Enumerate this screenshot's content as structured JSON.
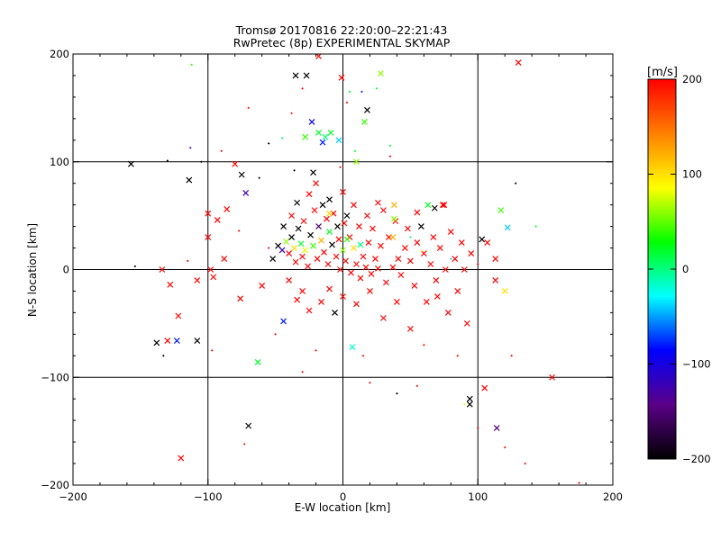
{
  "chart_data": {
    "type": "scatter",
    "title": "Tromsø 20170816 22:20:00–22:21:43",
    "subtitle": "RwPretec (8p) EXPERIMENTAL SKYMAP",
    "xlabel": "E-W location [km]",
    "ylabel": "N-S location [km]",
    "xlim": [
      -200,
      200
    ],
    "ylim": [
      -200,
      200
    ],
    "grid": true,
    "x_ticks": [
      "−200",
      "−100",
      "0",
      "100",
      "200"
    ],
    "y_ticks": [
      "−200",
      "−100",
      "0",
      "100",
      "200"
    ],
    "colorbar": {
      "label": "[m/s]",
      "range": [
        -200,
        200
      ],
      "ticks": [
        "200",
        "100",
        "0",
        "−100",
        "−200"
      ],
      "colors": [
        "#ff0000",
        "#ff7f00",
        "#ffff00",
        "#00ff00",
        "#00ffff",
        "#0000ff",
        "#5a0087",
        "#000000"
      ]
    },
    "points": [
      {
        "x": -157,
        "y": 98,
        "v": -200,
        "m": "x"
      },
      {
        "x": -130,
        "y": 101,
        "v": -200,
        "m": "d"
      },
      {
        "x": -113,
        "y": 113,
        "v": -120,
        "m": "d"
      },
      {
        "x": -114,
        "y": 83,
        "v": -200,
        "m": "x"
      },
      {
        "x": -112,
        "y": 190,
        "v": 40,
        "m": "d"
      },
      {
        "x": -105,
        "y": 100,
        "v": -200,
        "m": "d"
      },
      {
        "x": -90,
        "y": 110,
        "v": 200,
        "m": "d"
      },
      {
        "x": -80,
        "y": 98,
        "v": 200,
        "m": "x"
      },
      {
        "x": -75,
        "y": 88,
        "v": -200,
        "m": "x"
      },
      {
        "x": -72,
        "y": 71,
        "v": -120,
        "m": "x"
      },
      {
        "x": -55,
        "y": 117,
        "v": -200,
        "m": "d"
      },
      {
        "x": -45,
        "y": 122,
        "v": 10,
        "m": "d"
      },
      {
        "x": -38,
        "y": 145,
        "v": 200,
        "m": "d"
      },
      {
        "x": -35,
        "y": 180,
        "v": -200,
        "m": "x"
      },
      {
        "x": -30,
        "y": 168,
        "v": 200,
        "m": "d"
      },
      {
        "x": -27,
        "y": 180,
        "v": -200,
        "m": "x"
      },
      {
        "x": -23,
        "y": 137,
        "v": -90,
        "m": "x"
      },
      {
        "x": -18,
        "y": 127,
        "v": 20,
        "m": "x"
      },
      {
        "x": -15,
        "y": 118,
        "v": -80,
        "m": "x"
      },
      {
        "x": -13,
        "y": 123,
        "v": 0,
        "m": "x"
      },
      {
        "x": -9,
        "y": 127,
        "v": 20,
        "m": "x"
      },
      {
        "x": -3,
        "y": 120,
        "v": -40,
        "m": "x"
      },
      {
        "x": -1,
        "y": 178,
        "v": 200,
        "m": "x"
      },
      {
        "x": 3,
        "y": 155,
        "v": 200,
        "m": "d"
      },
      {
        "x": 9,
        "y": 110,
        "v": 20,
        "m": "d"
      },
      {
        "x": 16,
        "y": 137,
        "v": 40,
        "m": "x"
      },
      {
        "x": 18,
        "y": 148,
        "v": -200,
        "m": "x"
      },
      {
        "x": 25,
        "y": 168,
        "v": 20,
        "m": "d"
      },
      {
        "x": 28,
        "y": 182,
        "v": 60,
        "m": "x"
      },
      {
        "x": -28,
        "y": 123,
        "v": 40,
        "m": "x"
      },
      {
        "x": -36,
        "y": 92,
        "v": -200,
        "m": "d"
      },
      {
        "x": -22,
        "y": 90,
        "v": -200,
        "m": "x"
      },
      {
        "x": -2,
        "y": 95,
        "v": 200,
        "m": "d"
      },
      {
        "x": 10,
        "y": 100,
        "v": 60,
        "m": "x"
      },
      {
        "x": 35,
        "y": 115,
        "v": 20,
        "m": "d"
      },
      {
        "x": 35,
        "y": 105,
        "v": 200,
        "m": "d"
      },
      {
        "x": -134,
        "y": 0,
        "v": 200,
        "m": "x"
      },
      {
        "x": -128,
        "y": -14,
        "v": 200,
        "m": "x"
      },
      {
        "x": -122,
        "y": -43,
        "v": 200,
        "m": "x"
      },
      {
        "x": -108,
        "y": -10,
        "v": 200,
        "m": "x"
      },
      {
        "x": -98,
        "y": 0,
        "v": 200,
        "m": "x"
      },
      {
        "x": -96,
        "y": -7,
        "v": 200,
        "m": "x"
      },
      {
        "x": -100,
        "y": 30,
        "v": 200,
        "m": "x"
      },
      {
        "x": -100,
        "y": 52,
        "v": 200,
        "m": "x"
      },
      {
        "x": -88,
        "y": 10,
        "v": 200,
        "m": "x"
      },
      {
        "x": -93,
        "y": 46,
        "v": 200,
        "m": "x"
      },
      {
        "x": -86,
        "y": 56,
        "v": 200,
        "m": "x"
      },
      {
        "x": -77,
        "y": 36,
        "v": 200,
        "m": "d"
      },
      {
        "x": -138,
        "y": -68,
        "v": -200,
        "m": "x"
      },
      {
        "x": -130,
        "y": -66,
        "v": 200,
        "m": "x"
      },
      {
        "x": -123,
        "y": -66,
        "v": -80,
        "m": "x"
      },
      {
        "x": -108,
        "y": -66,
        "v": -200,
        "m": "x"
      },
      {
        "x": -133,
        "y": -80,
        "v": -200,
        "m": "d"
      },
      {
        "x": -97,
        "y": -75,
        "v": 200,
        "m": "d"
      },
      {
        "x": -63,
        "y": -86,
        "v": 20,
        "m": "x"
      },
      {
        "x": -76,
        "y": -27,
        "v": 200,
        "m": "x"
      },
      {
        "x": -60,
        "y": -15,
        "v": 200,
        "m": "x"
      },
      {
        "x": -120,
        "y": -175,
        "v": 200,
        "m": "x"
      },
      {
        "x": -70,
        "y": -145,
        "v": -200,
        "m": "x"
      },
      {
        "x": -73,
        "y": -162,
        "v": 200,
        "m": "d"
      },
      {
        "x": -52,
        "y": 10,
        "v": -200,
        "m": "x"
      },
      {
        "x": -48,
        "y": 22,
        "v": -200,
        "m": "x"
      },
      {
        "x": -45,
        "y": 18,
        "v": -120,
        "m": "x"
      },
      {
        "x": -42,
        "y": 26,
        "v": 60,
        "m": "x"
      },
      {
        "x": -40,
        "y": 15,
        "v": 200,
        "m": "x"
      },
      {
        "x": -38,
        "y": 30,
        "v": -200,
        "m": "x"
      },
      {
        "x": -36,
        "y": 20,
        "v": 100,
        "m": "x"
      },
      {
        "x": -35,
        "y": 7,
        "v": 200,
        "m": "x"
      },
      {
        "x": -33,
        "y": 38,
        "v": -200,
        "m": "x"
      },
      {
        "x": -31,
        "y": 24,
        "v": 20,
        "m": "x"
      },
      {
        "x": -30,
        "y": 12,
        "v": 200,
        "m": "x"
      },
      {
        "x": -29,
        "y": 45,
        "v": 200,
        "m": "x"
      },
      {
        "x": -28,
        "y": 18,
        "v": 80,
        "m": "x"
      },
      {
        "x": -26,
        "y": 3,
        "v": 200,
        "m": "x"
      },
      {
        "x": -24,
        "y": 32,
        "v": -200,
        "m": "x"
      },
      {
        "x": -22,
        "y": 22,
        "v": 40,
        "m": "x"
      },
      {
        "x": -21,
        "y": 55,
        "v": 200,
        "m": "x"
      },
      {
        "x": -19,
        "y": 10,
        "v": 200,
        "m": "x"
      },
      {
        "x": -18,
        "y": 40,
        "v": -150,
        "m": "x"
      },
      {
        "x": -16,
        "y": 27,
        "v": 120,
        "m": "x"
      },
      {
        "x": -15,
        "y": 60,
        "v": -200,
        "m": "x"
      },
      {
        "x": -14,
        "y": 16,
        "v": 200,
        "m": "x"
      },
      {
        "x": -12,
        "y": 47,
        "v": 200,
        "m": "x"
      },
      {
        "x": -11,
        "y": 5,
        "v": 200,
        "m": "x"
      },
      {
        "x": -10,
        "y": 35,
        "v": 20,
        "m": "x"
      },
      {
        "x": -8,
        "y": 23,
        "v": -200,
        "m": "x"
      },
      {
        "x": -7,
        "y": 52,
        "v": 200,
        "m": "x"
      },
      {
        "x": -5,
        "y": 12,
        "v": 200,
        "m": "x"
      },
      {
        "x": -4,
        "y": 40,
        "v": -200,
        "m": "x"
      },
      {
        "x": -3,
        "y": 28,
        "v": 200,
        "m": "x"
      },
      {
        "x": -2,
        "y": 0,
        "v": 200,
        "m": "x"
      },
      {
        "x": 0,
        "y": 18,
        "v": 60,
        "m": "x"
      },
      {
        "x": 1,
        "y": 43,
        "v": 200,
        "m": "x"
      },
      {
        "x": 2,
        "y": 8,
        "v": 200,
        "m": "x"
      },
      {
        "x": 3,
        "y": 50,
        "v": -200,
        "m": "x"
      },
      {
        "x": 5,
        "y": 30,
        "v": 200,
        "m": "x"
      },
      {
        "x": 6,
        "y": -3,
        "v": 200,
        "m": "x"
      },
      {
        "x": 8,
        "y": 20,
        "v": 100,
        "m": "x"
      },
      {
        "x": 10,
        "y": 5,
        "v": 200,
        "m": "x"
      },
      {
        "x": 12,
        "y": 40,
        "v": 200,
        "m": "x"
      },
      {
        "x": 13,
        "y": -8,
        "v": 200,
        "m": "x"
      },
      {
        "x": 15,
        "y": 12,
        "v": 200,
        "m": "x"
      },
      {
        "x": 17,
        "y": 2,
        "v": 200,
        "m": "x"
      },
      {
        "x": 19,
        "y": 25,
        "v": 200,
        "m": "x"
      },
      {
        "x": 21,
        "y": -4,
        "v": 200,
        "m": "x"
      },
      {
        "x": 22,
        "y": 38,
        "v": 200,
        "m": "x"
      },
      {
        "x": 24,
        "y": 10,
        "v": 200,
        "m": "x"
      },
      {
        "x": 26,
        "y": 1,
        "v": 200,
        "m": "x"
      },
      {
        "x": 28,
        "y": 22,
        "v": 200,
        "m": "x"
      },
      {
        "x": 30,
        "y": 55,
        "v": 200,
        "m": "x"
      },
      {
        "x": 32,
        "y": -12,
        "v": 200,
        "m": "x"
      },
      {
        "x": 34,
        "y": 30,
        "v": 200,
        "m": "x"
      },
      {
        "x": 37,
        "y": 2,
        "v": 200,
        "m": "x"
      },
      {
        "x": 39,
        "y": 45,
        "v": 200,
        "m": "x"
      },
      {
        "x": 41,
        "y": 10,
        "v": 200,
        "m": "x"
      },
      {
        "x": 43,
        "y": -5,
        "v": 200,
        "m": "x"
      },
      {
        "x": 46,
        "y": 20,
        "v": 200,
        "m": "x"
      },
      {
        "x": 48,
        "y": 38,
        "v": 200,
        "m": "x"
      },
      {
        "x": 50,
        "y": 8,
        "v": 200,
        "m": "x"
      },
      {
        "x": 53,
        "y": -15,
        "v": 200,
        "m": "x"
      },
      {
        "x": 55,
        "y": 25,
        "v": 200,
        "m": "x"
      },
      {
        "x": 58,
        "y": 40,
        "v": -200,
        "m": "x"
      },
      {
        "x": 60,
        "y": 15,
        "v": 200,
        "m": "x"
      },
      {
        "x": 62,
        "y": -30,
        "v": 200,
        "m": "x"
      },
      {
        "x": 65,
        "y": 5,
        "v": 200,
        "m": "x"
      },
      {
        "x": 67,
        "y": 30,
        "v": 200,
        "m": "x"
      },
      {
        "x": 69,
        "y": -10,
        "v": 200,
        "m": "x"
      },
      {
        "x": 72,
        "y": 20,
        "v": 200,
        "m": "x"
      },
      {
        "x": 74,
        "y": 60,
        "v": 200,
        "m": "x"
      },
      {
        "x": 76,
        "y": 0,
        "v": 200,
        "m": "x"
      },
      {
        "x": 78,
        "y": -40,
        "v": 200,
        "m": "x"
      },
      {
        "x": 80,
        "y": 35,
        "v": 200,
        "m": "x"
      },
      {
        "x": 83,
        "y": 10,
        "v": 200,
        "m": "x"
      },
      {
        "x": 85,
        "y": -20,
        "v": 200,
        "m": "x"
      },
      {
        "x": 88,
        "y": 25,
        "v": 200,
        "m": "x"
      },
      {
        "x": 90,
        "y": 0,
        "v": 200,
        "m": "x"
      },
      {
        "x": 92,
        "y": -50,
        "v": 200,
        "m": "x"
      },
      {
        "x": 95,
        "y": 15,
        "v": 200,
        "m": "x"
      },
      {
        "x": -6,
        "y": -40,
        "v": -200,
        "m": "x"
      },
      {
        "x": -16,
        "y": -30,
        "v": 200,
        "m": "x"
      },
      {
        "x": -25,
        "y": -38,
        "v": 200,
        "m": "x"
      },
      {
        "x": -34,
        "y": -28,
        "v": 200,
        "m": "x"
      },
      {
        "x": -44,
        "y": -48,
        "v": -80,
        "m": "x"
      },
      {
        "x": 7,
        "y": -72,
        "v": -20,
        "m": "x"
      },
      {
        "x": -30,
        "y": -20,
        "v": 200,
        "m": "x"
      },
      {
        "x": -40,
        "y": -10,
        "v": 200,
        "m": "x"
      },
      {
        "x": -10,
        "y": -18,
        "v": 200,
        "m": "x"
      },
      {
        "x": 0,
        "y": -25,
        "v": 200,
        "m": "x"
      },
      {
        "x": 10,
        "y": -32,
        "v": 200,
        "m": "x"
      },
      {
        "x": 20,
        "y": -20,
        "v": 200,
        "m": "x"
      },
      {
        "x": 30,
        "y": -45,
        "v": 200,
        "m": "x"
      },
      {
        "x": 40,
        "y": -30,
        "v": 200,
        "m": "x"
      },
      {
        "x": 50,
        "y": -55,
        "v": 200,
        "m": "x"
      },
      {
        "x": 70,
        "y": -25,
        "v": 200,
        "m": "x"
      },
      {
        "x": -44,
        "y": 40,
        "v": -200,
        "m": "x"
      },
      {
        "x": -38,
        "y": 50,
        "v": 200,
        "m": "x"
      },
      {
        "x": -34,
        "y": 62,
        "v": -200,
        "m": "x"
      },
      {
        "x": -25,
        "y": 70,
        "v": 200,
        "m": "x"
      },
      {
        "x": -20,
        "y": 80,
        "v": 200,
        "m": "x"
      },
      {
        "x": -10,
        "y": 65,
        "v": -200,
        "m": "x"
      },
      {
        "x": 0,
        "y": 72,
        "v": 200,
        "m": "x"
      },
      {
        "x": 8,
        "y": 60,
        "v": 200,
        "m": "x"
      },
      {
        "x": 18,
        "y": 50,
        "v": 200,
        "m": "x"
      },
      {
        "x": 26,
        "y": 62,
        "v": 200,
        "m": "x"
      },
      {
        "x": 38,
        "y": 60,
        "v": 120,
        "m": "x"
      },
      {
        "x": 63,
        "y": 60,
        "v": 20,
        "m": "x"
      },
      {
        "x": 68,
        "y": 57,
        "v": -200,
        "m": "x"
      },
      {
        "x": 75,
        "y": 60,
        "v": 200,
        "m": "x"
      },
      {
        "x": 38,
        "y": 47,
        "v": 60,
        "m": "x"
      },
      {
        "x": 55,
        "y": 53,
        "v": 200,
        "m": "x"
      },
      {
        "x": -10,
        "y": 52,
        "v": 100,
        "m": "x"
      },
      {
        "x": 3,
        "y": 28,
        "v": 40,
        "m": "x"
      },
      {
        "x": 13,
        "y": 23,
        "v": 0,
        "m": "x"
      },
      {
        "x": 37,
        "y": 30,
        "v": 120,
        "m": "x"
      },
      {
        "x": 50,
        "y": 30,
        "v": 0,
        "m": "d"
      },
      {
        "x": 58,
        "y": 17,
        "v": 80,
        "m": "d"
      },
      {
        "x": 80,
        "y": 10,
        "v": -40,
        "m": "d"
      },
      {
        "x": 100,
        "y": 5,
        "v": 200,
        "m": "d"
      },
      {
        "x": 103,
        "y": 28,
        "v": -200,
        "m": "x"
      },
      {
        "x": 107,
        "y": 25,
        "v": 200,
        "m": "x"
      },
      {
        "x": 113,
        "y": 10,
        "v": 200,
        "m": "x"
      },
      {
        "x": 113,
        "y": -10,
        "v": 200,
        "m": "x"
      },
      {
        "x": 117,
        "y": 55,
        "v": 40,
        "m": "x"
      },
      {
        "x": 122,
        "y": 39,
        "v": -40,
        "m": "x"
      },
      {
        "x": 120,
        "y": -20,
        "v": 100,
        "m": "x"
      },
      {
        "x": 128,
        "y": 80,
        "v": -200,
        "m": "d"
      },
      {
        "x": 143,
        "y": 40,
        "v": 20,
        "m": "d"
      },
      {
        "x": 130,
        "y": 192,
        "v": 200,
        "m": "x"
      },
      {
        "x": 155,
        "y": -100,
        "v": 200,
        "m": "x"
      },
      {
        "x": 94,
        "y": -120,
        "v": -200,
        "m": "x"
      },
      {
        "x": 94,
        "y": -125,
        "v": -200,
        "m": "x"
      },
      {
        "x": 105,
        "y": -110,
        "v": 200,
        "m": "x"
      },
      {
        "x": 114,
        "y": -147,
        "v": -150,
        "m": "x"
      },
      {
        "x": 40,
        "y": -115,
        "v": -200,
        "m": "d"
      },
      {
        "x": 55,
        "y": -108,
        "v": 200,
        "m": "d"
      },
      {
        "x": 100,
        "y": -147,
        "v": 200,
        "m": "d"
      },
      {
        "x": 120,
        "y": -165,
        "v": 200,
        "m": "d"
      },
      {
        "x": 135,
        "y": -180,
        "v": 200,
        "m": "d"
      },
      {
        "x": 175,
        "y": -198,
        "v": 200,
        "m": "d"
      },
      {
        "x": 125,
        "y": -80,
        "v": 200,
        "m": "d"
      },
      {
        "x": 90,
        "y": -125,
        "v": 80,
        "m": "d"
      },
      {
        "x": -154,
        "y": 3,
        "v": -200,
        "m": "d"
      },
      {
        "x": -115,
        "y": 8,
        "v": 200,
        "m": "d"
      },
      {
        "x": -70,
        "y": 150,
        "v": 200,
        "m": "d"
      },
      {
        "x": -62,
        "y": 85,
        "v": -200,
        "m": "d"
      },
      {
        "x": -55,
        "y": 20,
        "v": 200,
        "m": "d"
      },
      {
        "x": -50,
        "y": -60,
        "v": 200,
        "m": "d"
      },
      {
        "x": -20,
        "y": -75,
        "v": 200,
        "m": "d"
      },
      {
        "x": -30,
        "y": -95,
        "v": 200,
        "m": "d"
      },
      {
        "x": 15,
        "y": -80,
        "v": 200,
        "m": "d"
      },
      {
        "x": 20,
        "y": -105,
        "v": 200,
        "m": "d"
      },
      {
        "x": 60,
        "y": -70,
        "v": 200,
        "m": "d"
      },
      {
        "x": 85,
        "y": -80,
        "v": 200,
        "m": "d"
      },
      {
        "x": -18,
        "y": 198,
        "v": 200,
        "m": "x"
      },
      {
        "x": 5,
        "y": 165,
        "v": 20,
        "m": "d"
      },
      {
        "x": 14,
        "y": 165,
        "v": -80,
        "m": "d"
      }
    ]
  }
}
